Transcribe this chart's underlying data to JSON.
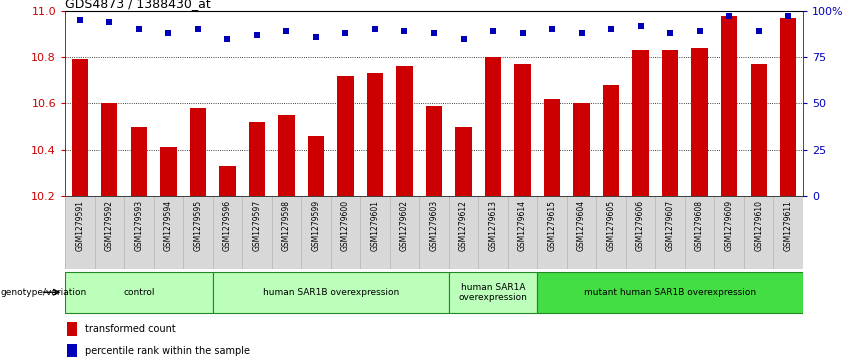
{
  "title": "GDS4873 / 1388430_at",
  "samples": [
    "GSM1279591",
    "GSM1279592",
    "GSM1279593",
    "GSM1279594",
    "GSM1279595",
    "GSM1279596",
    "GSM1279597",
    "GSM1279598",
    "GSM1279599",
    "GSM1279600",
    "GSM1279601",
    "GSM1279602",
    "GSM1279603",
    "GSM1279612",
    "GSM1279613",
    "GSM1279614",
    "GSM1279615",
    "GSM1279604",
    "GSM1279605",
    "GSM1279606",
    "GSM1279607",
    "GSM1279608",
    "GSM1279609",
    "GSM1279610",
    "GSM1279611"
  ],
  "bar_values": [
    10.79,
    10.6,
    10.5,
    10.41,
    10.58,
    10.33,
    10.52,
    10.55,
    10.46,
    10.72,
    10.73,
    10.76,
    10.59,
    10.5,
    10.8,
    10.77,
    10.62,
    10.6,
    10.68,
    10.83,
    10.83,
    10.84,
    10.98,
    10.77,
    10.97
  ],
  "percentile_values": [
    95,
    94,
    90,
    88,
    90,
    85,
    87,
    89,
    86,
    88,
    90,
    89,
    88,
    85,
    89,
    88,
    90,
    88,
    90,
    92,
    88,
    89,
    97,
    89,
    97
  ],
  "bar_color": "#cc0000",
  "dot_color": "#0000bb",
  "ylim_left": [
    10.2,
    11.0
  ],
  "ylim_right": [
    0,
    100
  ],
  "yticks_left": [
    10.2,
    10.4,
    10.6,
    10.8,
    11.0
  ],
  "yticks_right": [
    0,
    25,
    50,
    75,
    100
  ],
  "ytick_labels_right": [
    "0",
    "25",
    "50",
    "75",
    "100%"
  ],
  "groups": [
    {
      "label": "control",
      "start": 0,
      "end": 4,
      "color": "#bbffbb"
    },
    {
      "label": "human SAR1B overexpression",
      "start": 5,
      "end": 12,
      "color": "#bbffbb"
    },
    {
      "label": "human SAR1A\noverexpression",
      "start": 13,
      "end": 15,
      "color": "#bbffbb"
    },
    {
      "label": "mutant human SAR1B overexpression",
      "start": 16,
      "end": 24,
      "color": "#44dd44"
    }
  ],
  "group_border_color": "#228822",
  "xtick_bg_color": "#d8d8d8",
  "legend_items": [
    {
      "label": "transformed count",
      "color": "#cc0000"
    },
    {
      "label": "percentile rank within the sample",
      "color": "#0000bb"
    }
  ],
  "genotype_label": "genotype/variation"
}
